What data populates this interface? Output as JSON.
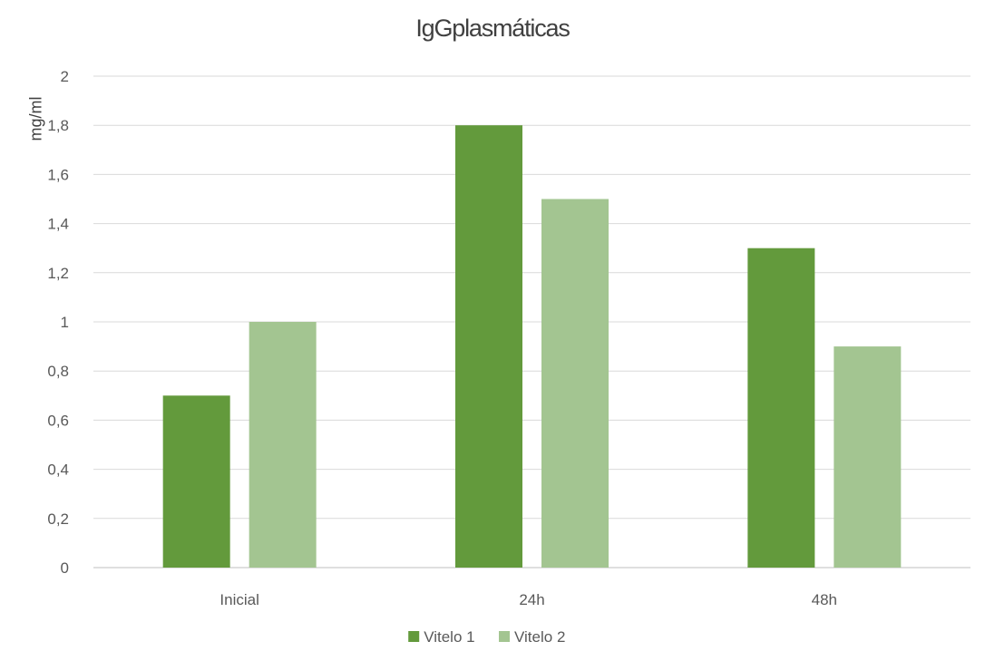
{
  "chart_data": {
    "type": "bar",
    "title": "IgGplasmáticas",
    "ylabel": "mg/ml",
    "xlabel": "",
    "categories": [
      "Inicial",
      "24h",
      "48h"
    ],
    "ylim": [
      0,
      2
    ],
    "yticks": [
      "0",
      "0,2",
      "0,4",
      "0,6",
      "0,8",
      "1",
      "1,2",
      "1,4",
      "1,6",
      "1,8",
      "2"
    ],
    "grid": true,
    "legend_position": "bottom",
    "series": [
      {
        "name": "Vitelo 1",
        "values": [
          0.7,
          1.8,
          1.3
        ],
        "color": "#639a3c"
      },
      {
        "name": "Vitelo 2",
        "values": [
          1.0,
          1.5,
          0.9
        ],
        "color": "#a3c591"
      }
    ]
  }
}
